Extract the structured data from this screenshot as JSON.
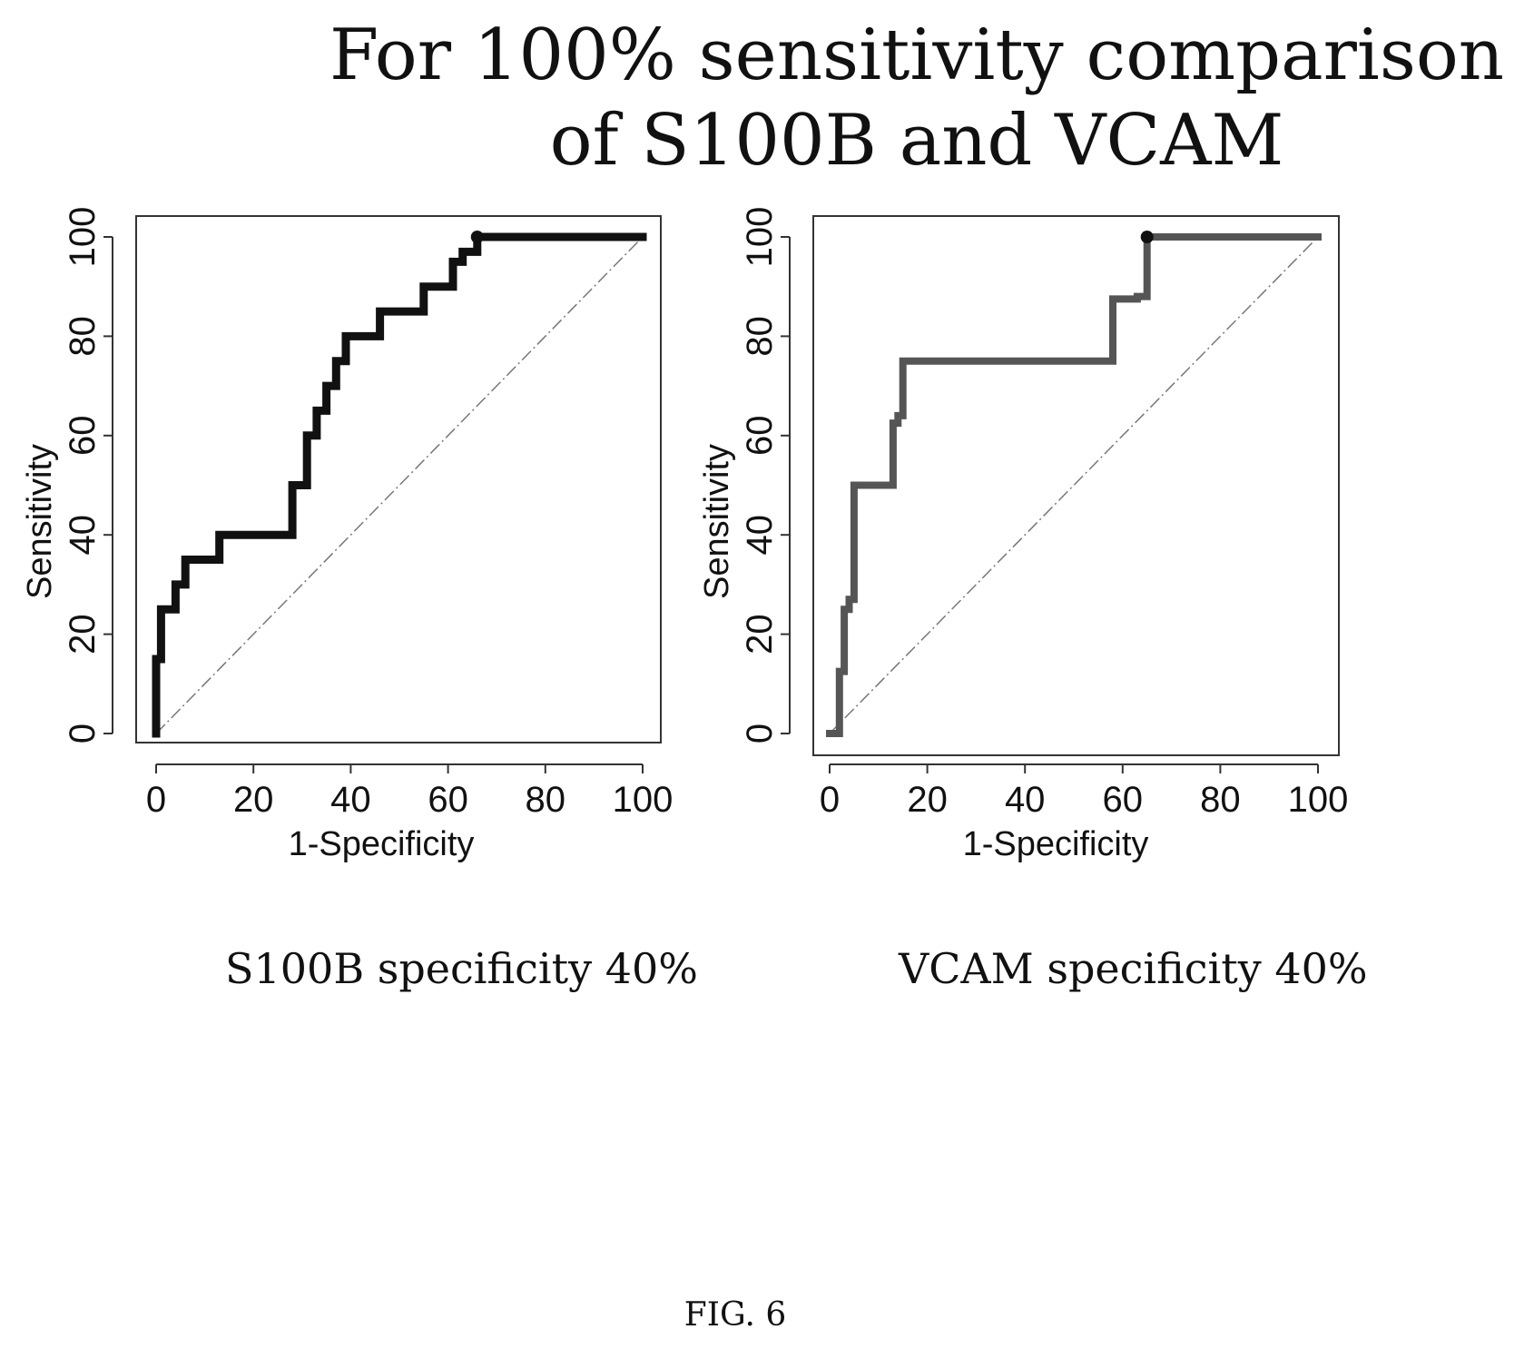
{
  "title_line1": "For 100% sensitivity comparison",
  "title_line2": "of S100B and VCAM",
  "figure_label": "FIG. 6",
  "colors": {
    "s100b_curve": "#111111",
    "vcam_curve": "#555555",
    "diagonal": "#777777"
  },
  "chart_data": [
    {
      "type": "line",
      "xlabel": "1-Specificity",
      "ylabel": "Sensitivity",
      "xlim": [
        0,
        100
      ],
      "ylim": [
        0,
        100
      ],
      "xticks": [
        "0",
        "20",
        "40",
        "60",
        "80",
        "100"
      ],
      "yticks": [
        "0",
        "20",
        "40",
        "60",
        "80",
        "100"
      ],
      "caption": "S100B specificity 40%",
      "series": [
        {
          "x": [
            0,
            0,
            1,
            1,
            4,
            4,
            6,
            6,
            13,
            13,
            28,
            28,
            31,
            31,
            33,
            33,
            35,
            35,
            37,
            37,
            39,
            39,
            46,
            46,
            55,
            55,
            61,
            61,
            63,
            63,
            66,
            66,
            100
          ],
          "y": [
            0,
            15,
            15,
            25,
            25,
            30,
            30,
            35,
            35,
            40,
            40,
            50,
            50,
            60,
            60,
            65,
            65,
            70,
            70,
            75,
            75,
            80,
            80,
            85,
            85,
            90,
            90,
            95,
            95,
            97,
            97,
            100,
            100
          ]
        },
        {
          "x": [
            0,
            100
          ],
          "y": [
            0,
            100
          ]
        }
      ],
      "highlight_point": {
        "x": 66,
        "y": 100
      }
    },
    {
      "type": "line",
      "xlabel": "1-Specificity",
      "ylabel": "Sensitivity",
      "xlim": [
        0,
        100
      ],
      "ylim": [
        0,
        100
      ],
      "xticks": [
        "0",
        "20",
        "40",
        "60",
        "80",
        "100"
      ],
      "yticks": [
        "0",
        "20",
        "40",
        "60",
        "80",
        "100"
      ],
      "caption": "VCAM specificity 40%",
      "series": [
        {
          "x": [
            0,
            2,
            2,
            3,
            3,
            4,
            4,
            5,
            5,
            13,
            13,
            14,
            14,
            15,
            15,
            58,
            58,
            63,
            63,
            65,
            65,
            100
          ],
          "y": [
            0,
            0,
            12.5,
            12.5,
            25,
            25,
            27,
            27,
            50,
            50,
            62.5,
            62.5,
            64,
            64,
            75,
            75,
            87.5,
            87.5,
            88,
            88,
            100,
            100
          ]
        },
        {
          "x": [
            0,
            100
          ],
          "y": [
            0,
            100
          ]
        }
      ],
      "highlight_point": {
        "x": 65,
        "y": 100
      }
    }
  ]
}
